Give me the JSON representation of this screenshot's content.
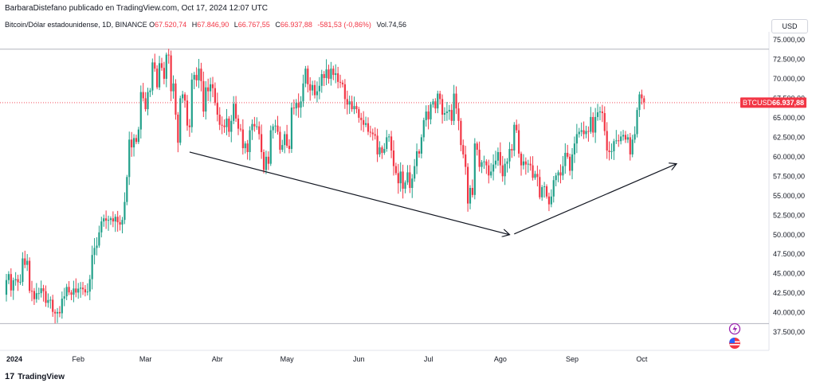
{
  "header": {
    "published_line": "BarbaraDistefano publicado en TradingView.com, Oct 17, 2024 12:07 UTC",
    "symbol_desc": "Bitcoin/Dólar estadounidense, 1D, BINANCE",
    "open_label": "O",
    "open_value": "67.520,74",
    "high_label": "H",
    "high_value": "67.846,90",
    "low_label": "L",
    "low_value": "66.767,55",
    "close_label": "C",
    "close_value": "66.937,88",
    "change_value": "-581,53 (-0,86%)",
    "volume": "Vol.74,56",
    "currency_button": "USD"
  },
  "footer": {
    "brand": "TradingView",
    "logo_glyph": "17"
  },
  "colors": {
    "up": "#22a08a",
    "down": "#f23645",
    "arrow": "#131722",
    "price_tag": "#f23645",
    "event_icon": "#9c27b0"
  },
  "chart_data": {
    "type": "candlestick",
    "title": "",
    "price_tag": {
      "symbol": "BTCUSD",
      "value": "66.937,88"
    },
    "y_ticks": [
      "75.000,00",
      "72.500,00",
      "70.000,00",
      "67.500,00",
      "65.000,00",
      "62.500,00",
      "60.000,00",
      "57.500,00",
      "55.000,00",
      "52.500,00",
      "50.000,00",
      "47.500,00",
      "45.000,00",
      "42.500,00",
      "40.000,00",
      "37.500,00"
    ],
    "y_tick_values": [
      75000,
      72500,
      70000,
      67500,
      65000,
      62500,
      60000,
      57500,
      55000,
      52500,
      50000,
      47500,
      45000,
      42500,
      40000,
      37500
    ],
    "ylim": [
      35800,
      76400
    ],
    "x_ticks": [
      "2024",
      "Feb",
      "Mar",
      "Abr",
      "May",
      "Jun",
      "Jul",
      "Ago",
      "Sep",
      "Oct"
    ],
    "x_tick_days": [
      0,
      31,
      60,
      91,
      121,
      152,
      182,
      213,
      244,
      274
    ],
    "xlim_days": [
      0,
      318
    ],
    "reference_lines": [
      73800,
      38600
    ],
    "close_series_start": "2024-01-01",
    "close_series": [
      44180,
      44950,
      42850,
      44160,
      44300,
      43900,
      43950,
      46960,
      46130,
      46650,
      42800,
      42780,
      41730,
      42500,
      42500,
      43130,
      42750,
      41260,
      41620,
      41660,
      40100,
      39900,
      40080,
      39920,
      41800,
      42100,
      43300,
      42600,
      42300,
      43100,
      42580,
      43080,
      43200,
      43000,
      42600,
      42700,
      44300,
      47400,
      48300,
      48600,
      50300,
      51700,
      52100,
      51800,
      51900,
      52100,
      51700,
      52300,
      51600,
      51300,
      51900,
      54200,
      57400,
      62200,
      61200,
      62400,
      61900,
      63500,
      68300,
      67500,
      66100,
      68300,
      68500,
      72100,
      71300,
      68900,
      72000,
      71400,
      70000,
      73100,
      73000,
      68400,
      69400,
      65400,
      61800,
      67500,
      68000,
      67200,
      64000,
      63800,
      69900,
      70500,
      69800,
      71300,
      69700,
      65800,
      68900,
      68400,
      69300,
      68800,
      66900,
      65400,
      64100,
      64000,
      63800,
      64900,
      63200,
      64600,
      66800,
      64900,
      63600,
      63500,
      61100,
      61700,
      60600,
      63400,
      64200,
      63900,
      63900,
      62900,
      60600,
      58300,
      60000,
      59100,
      63400,
      63900,
      64000,
      63200,
      60900,
      61500,
      62900,
      61400,
      61000,
      66300,
      66200,
      66900,
      66300,
      67100,
      69400,
      71300,
      69300,
      68500,
      69200,
      67900,
      68400,
      69100,
      70600,
      70100,
      71200,
      70000,
      71300,
      70500,
      70700,
      69600,
      69500,
      69300,
      67400,
      66700,
      67100,
      66100,
      66500,
      66100,
      65000,
      64700,
      64100,
      64300,
      63200,
      63100,
      62900,
      62700,
      60300,
      61200,
      60500,
      61000,
      62500,
      62600,
      60800,
      58800,
      57900,
      56600,
      58100,
      55900,
      56700,
      58000,
      56000,
      57200,
      58800,
      60700,
      60400,
      62500,
      64700,
      65800,
      64800,
      66700,
      67100,
      66200,
      68100,
      67400,
      65400,
      65600,
      65800,
      66000,
      64600,
      68100,
      66200,
      64600,
      61500,
      60300,
      58700,
      54000,
      56000,
      55100,
      61700,
      60900,
      58700,
      59300,
      59400,
      58900,
      57600,
      58100,
      59000,
      59500,
      60600,
      58900,
      57500,
      59100,
      59400,
      61000,
      60800,
      64100,
      63400,
      60400,
      58900,
      59400,
      59000,
      59100,
      58900,
      57300,
      57800,
      57400,
      54800,
      56100,
      56200,
      54900,
      53900,
      54900,
      57000,
      57600,
      58000,
      57600,
      58800,
      60500,
      60000,
      58200,
      60300,
      61700,
      62900,
      63200,
      63400,
      62900,
      63300,
      63200,
      65100,
      63100,
      65100,
      65700,
      65800,
      65600,
      63300,
      60800,
      60600,
      60700,
      62000,
      62100,
      62000,
      62600,
      62800,
      62200,
      62500,
      60300,
      62200,
      62900,
      66000,
      68000,
      67500,
      67000
    ],
    "annotations": [
      {
        "type": "arrow",
        "from": {
          "date": "2024-03-20",
          "price": 60600
        },
        "to": {
          "date": "2024-08-05",
          "price": 50000
        }
      },
      {
        "type": "arrow",
        "from": {
          "date": "2024-08-07",
          "price": 50100
        },
        "to": {
          "date": "2024-10-16",
          "price": 59100
        }
      }
    ]
  }
}
